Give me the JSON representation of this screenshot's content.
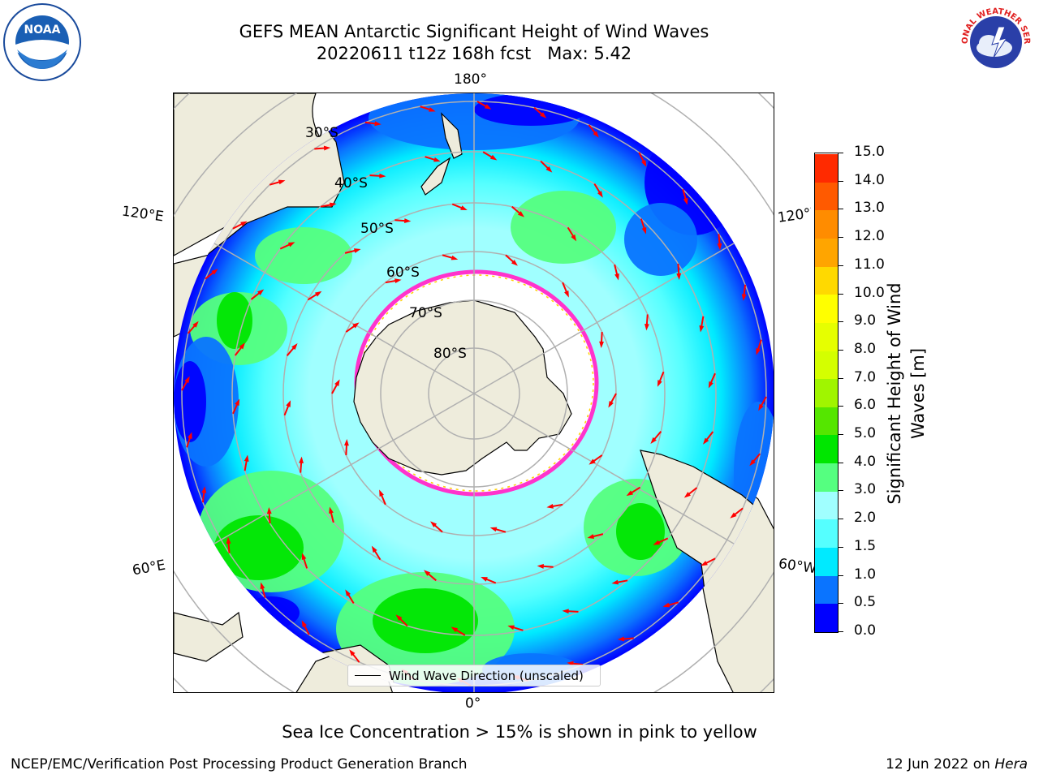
{
  "header": {
    "title_line1": "GEFS MEAN Antarctic Significant Height of Wind Waves",
    "title_line2": "20220611 t12z 168h fcst   Max: 5.42"
  },
  "map": {
    "projection": "south-polar-stereographic",
    "lon_labels": {
      "top": "180°",
      "bottom": "0°",
      "left_upper": "120°E",
      "left_lower": "60°E",
      "right_upper": "120°W",
      "right_lower": "60°W"
    },
    "lat_labels": [
      "30°S",
      "40°S",
      "50°S",
      "60°S",
      "70°S",
      "80°S"
    ],
    "colors": {
      "land": "#eeecdc",
      "ice": "#ffffff",
      "ice_edge": "#ff33cc",
      "arrow": "#ff0000",
      "grid": "#b0b0b0"
    }
  },
  "legend": {
    "entry": "Wind Wave Direction (unscaled)"
  },
  "colorbar": {
    "label": "Significant Height of Wind\nWaves [m]",
    "ticks": [
      "0.0",
      "0.5",
      "1.0",
      "1.5",
      "2.0",
      "3.0",
      "4.0",
      "5.0",
      "6.0",
      "7.0",
      "8.0",
      "9.0",
      "10.0",
      "11.0",
      "12.0",
      "13.0",
      "14.0",
      "15.0"
    ],
    "colors": [
      "#0000ff",
      "#0a74ff",
      "#00eaff",
      "#55ffff",
      "#a0ffff",
      "#55ff80",
      "#00e600",
      "#55e600",
      "#a0f500",
      "#d4ff00",
      "#e6ff00",
      "#ffff00",
      "#ffd900",
      "#ffa500",
      "#ff8c00",
      "#ff5a00",
      "#ff2a00"
    ]
  },
  "note": "Sea Ice Concentration > 15% is shown in pink to yellow",
  "footer": {
    "left": "NCEP/EMC/Verification Post Processing Product Generation Branch",
    "right_prefix": "12 Jun 2022 on ",
    "right_host": "Hera"
  },
  "logos": {
    "left": "NOAA",
    "right": "NATIONAL WEATHER SERVICE"
  }
}
